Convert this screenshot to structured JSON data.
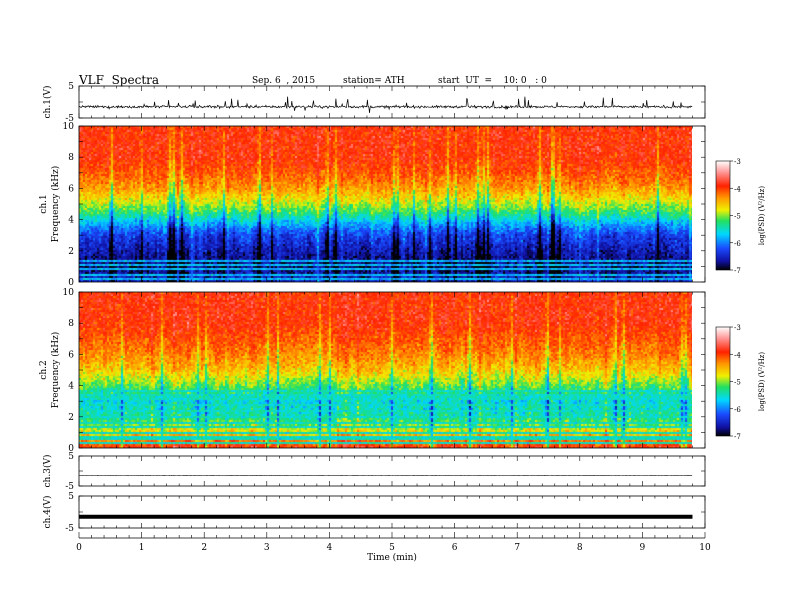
{
  "header": {
    "title": "VLF  Spectra",
    "date": "Sep. 6  , 2015",
    "station": "station= ATH",
    "start_ut": "start  UT  =    10: 0   : 0"
  },
  "chart_data": [
    {
      "type": "line",
      "id": "ch1-waveform",
      "ylabel": "ch.1(V)",
      "ylim": [
        -5,
        5
      ],
      "yticks": [
        5,
        -5
      ],
      "xlim": [
        0,
        10
      ],
      "description_values": {
        "baseline": -1.5,
        "spike_max": 1.5,
        "spike_min": -2.7
      },
      "data_end_min": 9.8,
      "line_color": "#000000"
    },
    {
      "type": "heatmap",
      "id": "ch1-spectrogram",
      "ylabel_channel": "ch.1",
      "ylabel": "Frequency  (kHz)",
      "ylim": [
        0,
        10
      ],
      "yticks": [
        0,
        2,
        4,
        6,
        8,
        10
      ],
      "xlim": [
        0,
        10
      ],
      "data_end_min": 9.8,
      "colorbar": {
        "label": "log(PSD) (V²/Hz)",
        "range": [
          -7,
          -3
        ],
        "ticks": [
          "-3",
          "-4",
          "-5",
          "-6",
          "-7"
        ],
        "colors": [
          "#000000",
          "#1010a0",
          "#1a4bff",
          "#00d8ff",
          "#22e060",
          "#f0f000",
          "#ff9900",
          "#ff2200",
          "#ff9a9a",
          "#ffffff"
        ]
      },
      "profile_freq_khz": [
        0,
        1,
        2,
        3,
        3.5,
        4,
        4.5,
        5,
        6,
        7,
        8,
        10
      ],
      "profile_logpsd": [
        -6.5,
        -6.8,
        -6.6,
        -6.3,
        -6.0,
        -5.6,
        -5.2,
        -4.9,
        -4.4,
        -4.1,
        -3.9,
        -3.9
      ],
      "flat_lines_khz": [
        0.2,
        0.5,
        0.8,
        1.05,
        1.3
      ],
      "flat_lines_logpsd": -5.8
    },
    {
      "type": "heatmap",
      "id": "ch2-spectrogram",
      "ylabel_channel": "ch.2",
      "ylabel": "Frequency  (kHz)",
      "ylim": [
        0,
        10
      ],
      "yticks": [
        0,
        2,
        4,
        6,
        8,
        10
      ],
      "xlim": [
        0,
        10
      ],
      "data_end_min": 9.8,
      "colorbar": {
        "label": "log(PSD) (V²/Hz)",
        "range": [
          -7,
          -3
        ],
        "ticks": [
          "-3",
          "-4",
          "-5",
          "-6",
          "-7"
        ],
        "colors": [
          "#000000",
          "#1010a0",
          "#1a4bff",
          "#00d8ff",
          "#22e060",
          "#f0f000",
          "#ff9900",
          "#ff2200",
          "#ff9a9a",
          "#ffffff"
        ]
      },
      "profile_freq_khz": [
        0,
        0.5,
        1,
        2,
        3,
        4,
        5,
        6,
        7,
        8,
        10
      ],
      "profile_logpsd": [
        -3.9,
        -4.3,
        -4.7,
        -5.4,
        -5.6,
        -5.1,
        -4.6,
        -4.3,
        -4.1,
        -3.9,
        -3.9
      ],
      "flat_lines_khz": [
        0.3,
        0.55,
        0.75,
        1.0,
        1.3,
        1.6,
        2.0,
        2.4,
        2.7,
        3.2,
        3.4,
        3.6
      ],
      "flat_lines_logpsd": -5.5
    },
    {
      "type": "line",
      "id": "ch3-waveform",
      "ylabel": "ch.3(V)",
      "ylim": [
        -5,
        5
      ],
      "yticks": [
        5,
        -5
      ],
      "xlim": [
        0,
        10
      ],
      "description_values": {
        "baseline": -1.5
      },
      "data_end_min": 9.8,
      "line_color": "#000000"
    },
    {
      "type": "line",
      "id": "ch4-waveform",
      "ylabel": "ch.4(V)",
      "ylim": [
        -5,
        5
      ],
      "yticks": [
        5,
        -5
      ],
      "xlim": [
        0,
        10
      ],
      "description_values": {
        "baseline": -1.5
      },
      "data_end_min": 9.8,
      "line_color": "#000000"
    }
  ],
  "x_axis": {
    "label": "Time  (min)",
    "ticks": [
      "0",
      "1",
      "2",
      "3",
      "4",
      "5",
      "6",
      "7",
      "8",
      "9",
      "10"
    ],
    "range": [
      0,
      10
    ]
  }
}
